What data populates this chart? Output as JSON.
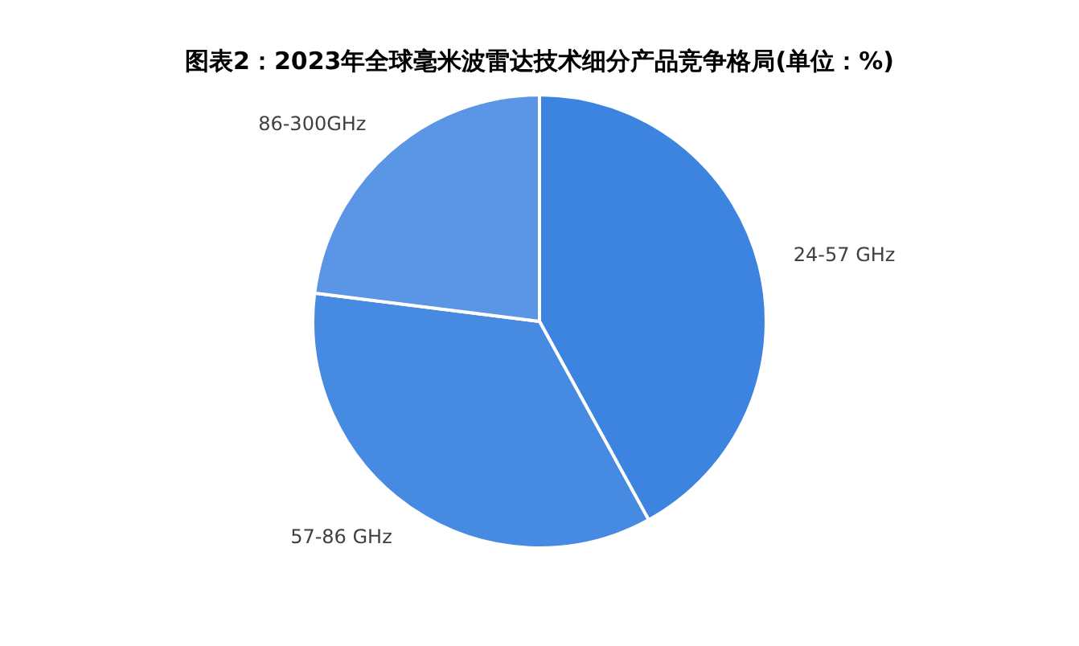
{
  "chart_data": {
    "type": "pie",
    "title": "图表2：2023年全球毫米波雷达技术细分产品竞争格局(单位：%)",
    "categories": [
      "24-57 GHz",
      "57-86 GHz",
      "86-300GHz"
    ],
    "values": [
      42,
      35,
      23
    ],
    "colors": [
      "#3c84e0",
      "#478ae2",
      "#5a95e6"
    ],
    "legend": false
  }
}
